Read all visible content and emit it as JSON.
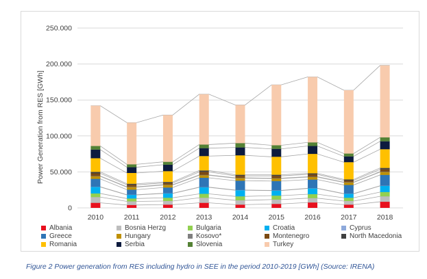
{
  "caption": "Figure 2 Power generation from RES including hydro in SEE in the period 2010-2019 [GWh] (Source: IRENA)",
  "chart_data": {
    "type": "bar",
    "stacked": true,
    "title": "",
    "xlabel": "",
    "ylabel": "Power Generation from RES [GWh]",
    "ylim": [
      0,
      250000
    ],
    "yticks": [
      0,
      50000,
      100000,
      150000,
      200000,
      250000
    ],
    "ytick_labels": [
      "0",
      "50.000",
      "100.000",
      "150.000",
      "200.000",
      "250.000"
    ],
    "grid": true,
    "legend_position": "bottom",
    "connector_lines": true,
    "categories": [
      "2010",
      "2011",
      "2012",
      "2013",
      "2014",
      "2015",
      "2016",
      "2017",
      "2018"
    ],
    "series": [
      {
        "name": "Albania",
        "color": "#e8101e",
        "values": [
          7000,
          4000,
          4500,
          7000,
          4500,
          5500,
          7500,
          4500,
          8500
        ]
      },
      {
        "name": "Bosnia Herzg",
        "color": "#bdbdbd",
        "values": [
          8000,
          5000,
          5000,
          7000,
          6000,
          6000,
          6000,
          5000,
          7500
        ]
      },
      {
        "name": "Bulgaria",
        "color": "#92d050",
        "values": [
          5000,
          4000,
          4500,
          5500,
          5500,
          5500,
          5500,
          4500,
          6000
        ]
      },
      {
        "name": "Croatia",
        "color": "#00b0f0",
        "values": [
          9000,
          5000,
          6000,
          9000,
          8500,
          7000,
          8000,
          5500,
          8500
        ]
      },
      {
        "name": "Cyprus",
        "color": "#8ea9db",
        "values": [
          300,
          300,
          300,
          300,
          300,
          300,
          300,
          300,
          300
        ]
      },
      {
        "name": "Greece",
        "color": "#2e75b6",
        "values": [
          11000,
          7000,
          8000,
          13000,
          13000,
          13000,
          12000,
          12000,
          15000
        ]
      },
      {
        "name": "Hungary",
        "color": "#bf9000",
        "values": [
          3500,
          3500,
          3500,
          3500,
          3500,
          3500,
          3500,
          3500,
          4000
        ]
      },
      {
        "name": "Kosovo*",
        "color": "#7f7f7f",
        "values": [
          500,
          500,
          500,
          500,
          500,
          500,
          500,
          500,
          500
        ]
      },
      {
        "name": "Montenegro",
        "color": "#7b4a12",
        "values": [
          3700,
          2700,
          2200,
          4200,
          2700,
          3200,
          3200,
          2200,
          3200
        ]
      },
      {
        "name": "North Macedonia",
        "color": "#404040",
        "values": [
          2000,
          1500,
          1500,
          2000,
          1500,
          1500,
          1500,
          1500,
          2000
        ]
      },
      {
        "name": "Romania",
        "color": "#ffc000",
        "values": [
          19000,
          15000,
          15000,
          20000,
          27000,
          25000,
          27000,
          24000,
          26000
        ]
      },
      {
        "name": "Serbia",
        "color": "#0d1b3e",
        "values": [
          12000,
          8000,
          9000,
          11000,
          11000,
          11000,
          11000,
          8000,
          11000
        ]
      },
      {
        "name": "Slovenia",
        "color": "#548235",
        "values": [
          5000,
          4000,
          4000,
          5000,
          6000,
          5000,
          5000,
          4000,
          5500
        ]
      },
      {
        "name": "Turkey",
        "color": "#f8cbad",
        "values": [
          56000,
          58000,
          65000,
          70000,
          53000,
          84000,
          91000,
          88000,
          100000
        ]
      }
    ]
  }
}
